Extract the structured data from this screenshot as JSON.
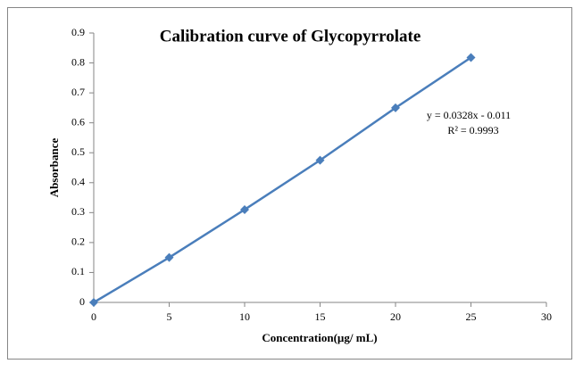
{
  "chart_data": {
    "type": "line",
    "title": "Calibration curve of Glycopyrrolate",
    "x_label": "Concentration(µg/ mL)",
    "y_label": "Absorbance",
    "x": [
      0,
      5,
      10,
      15,
      20,
      25
    ],
    "values": [
      0,
      0.15,
      0.31,
      0.475,
      0.65,
      0.818
    ],
    "color": "#4a7ebb",
    "marker": "diamond",
    "xlim": [
      0,
      30
    ],
    "xticks": [
      0,
      5,
      10,
      15,
      20,
      25,
      30
    ],
    "ylim": [
      0,
      0.9
    ],
    "yticks": [
      0,
      0.1,
      0.2,
      0.3,
      0.4,
      0.5,
      0.6,
      0.7,
      0.8,
      0.9
    ],
    "grid": false,
    "annotations": [
      "y = 0.0328x - 0.011",
      "R² = 0.9993"
    ]
  }
}
